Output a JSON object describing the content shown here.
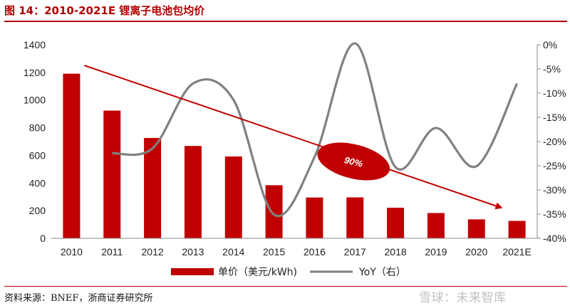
{
  "figure": {
    "title": "图 14：2010-2021E 锂离子电池包均价",
    "source": "资料来源：BNEF，浙商证券研究所",
    "watermark": "雪球：未来智库"
  },
  "colors": {
    "bar": "#c00000",
    "line": "#808080",
    "arrow": "#c00000",
    "ellipse": "#c00000",
    "title": "#b00000"
  },
  "chart_data": {
    "type": "bar",
    "categories": [
      "2010",
      "2011",
      "2012",
      "2013",
      "2014",
      "2015",
      "2016",
      "2017",
      "2018",
      "2019",
      "2020",
      "2021E"
    ],
    "series": [
      {
        "name": "单价（美元/kWh)",
        "type": "bar",
        "axis": "left",
        "values": [
          1191,
          924,
          726,
          668,
          592,
          384,
          295,
          296,
          221,
          183,
          137,
          126
        ]
      },
      {
        "name": "YoY（右）",
        "type": "line",
        "axis": "right",
        "values": [
          null,
          -22.4,
          -21.4,
          -8.0,
          -11.4,
          -35.1,
          -23.2,
          0.3,
          -25.3,
          -17.2,
          -25.1,
          -8.0
        ]
      }
    ],
    "y_left": {
      "ylim": [
        0,
        1400
      ],
      "ticks": [
        "0",
        "200",
        "400",
        "600",
        "800",
        "1000",
        "1200",
        "1400"
      ]
    },
    "y_right": {
      "ylim": [
        -40,
        0
      ],
      "ticks": [
        "-40%",
        "-35%",
        "-30%",
        "-25%",
        "-20%",
        "-15%",
        "-10%",
        "-5%",
        "0%"
      ]
    },
    "annotation": {
      "text": "90%",
      "arrow": "downward trend from 2010 to 2021E"
    },
    "legend": {
      "placement": "bottom"
    },
    "grid": false
  }
}
